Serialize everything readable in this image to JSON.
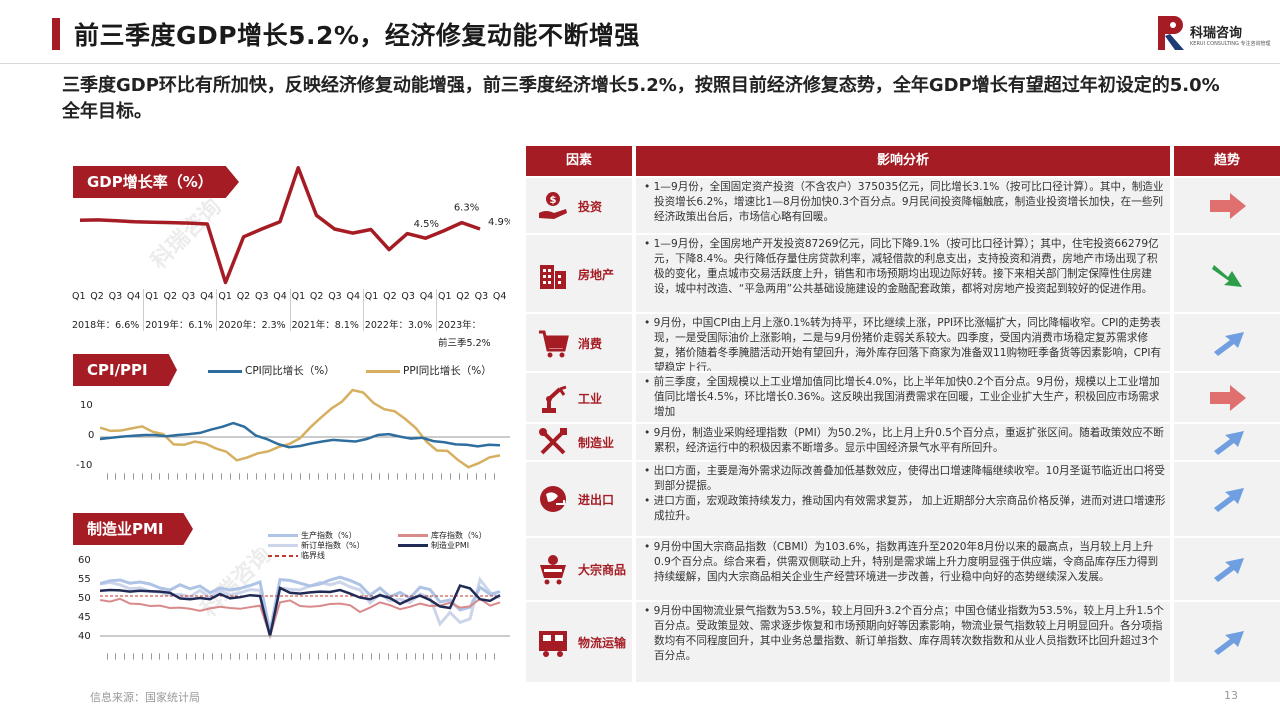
{
  "title": "前三季度GDP增长5.2%，经济修复动能不断增强",
  "logo": {
    "cn": "科瑞咨询",
    "en": "KERUI CONSULTING  专注咨询管理"
  },
  "subtitle": "三季度GDP环比有所加快，反映经济修复动能增强，前三季度经济增长5.2%，按照目前经济修复态势，全年GDP增长有望超过年初设定的5.0%全年目标。",
  "watermark": "科瑞咨询",
  "gdp_section": {
    "label": "GDP增长率（%）",
    "annotations": [
      "6.3%",
      "4.5%",
      "4.9%"
    ],
    "quarters": [
      "Q1",
      "Q2",
      "Q3",
      "Q4",
      "Q1",
      "Q2",
      "Q3",
      "Q4",
      "Q1",
      "Q2",
      "Q3",
      "Q4",
      "Q1",
      "Q2",
      "Q3",
      "Q4",
      "Q1",
      "Q2",
      "Q3",
      "Q4",
      "Q1",
      "Q2",
      "Q3",
      "Q4"
    ],
    "years": [
      "2018年：6.6%",
      "2019年：6.1%",
      "2020年：2.3%",
      "2021年：8.1%",
      "2022年：3.0%",
      "2023年："
    ],
    "year_last_line2": "前三季5.2%"
  },
  "cpi_section": {
    "label": "CPI/PPI",
    "legend": [
      "CPI同比增长（%）",
      "PPI同比增长（%）"
    ],
    "yticks": [
      "10",
      "0",
      "-10"
    ],
    "colors": {
      "cpi": "#2e6e9e",
      "ppi": "#d6b060"
    }
  },
  "pmi_section": {
    "label": "制造业PMI",
    "legend": [
      "生产指数（%）",
      "新订单指数（%）",
      "临界线",
      "库存指数（%）",
      "制造业PMI"
    ],
    "yticks": [
      "60",
      "55",
      "50",
      "45",
      "40"
    ],
    "colors": {
      "production": "#aec3e6",
      "orders": "#cdd5ea",
      "threshold": "#c0392b",
      "inventory": "#d98a8a",
      "pmi": "#1f2a55"
    }
  },
  "table": {
    "headers": [
      "因素",
      "影响分析",
      "趋势"
    ],
    "rows": [
      {
        "name": "投资",
        "icon": "investment-icon",
        "trend": "right",
        "lines": [
          "1—9月份，全国固定资产投资（不含农户）375035亿元，同比增长3.1%（按可比口径计算）。其中，制造业投资增长6.2%，增速比1—8月份加快0.3个百分点。9月民间投资降幅触底，制造业投资增长加快，在一些列经济政策出台后，市场信心略有回暖。"
        ]
      },
      {
        "name": "房地产",
        "icon": "building-icon",
        "trend": "down",
        "lines": [
          "1—9月份，全国房地产开发投资87269亿元，同比下降9.1%（按可比口径计算）；其中，住宅投资66279亿元，下降8.4%。央行降低存量住房贷款利率，减轻借款的利息支出，支持投资和消费，房地产市场出现了积极的变化，重点城市交易活跃度上升，销售和市场预期均出现边际好转。接下来相关部门制定保障性住房建设，城中村改造、“平急两用”公共基础设施建设的金融配套政策，都将对房地产投资起到较好的促进作用。"
        ]
      },
      {
        "name": "消费",
        "icon": "cart-icon",
        "trend": "up",
        "lines": [
          "9月份，中国CPI由上月上涨0.1%转为持平，环比继续上涨，PPI环比涨幅扩大，同比降幅收窄。CPI的走势表现，一是受国际油价上涨影响，二是与9月份猪价走弱关系较大。四季度，受国内消费市场稳定复苏需求修复，猪价随着冬季腌腊活动开始有望回升，海外库存回落下商家为准备双11购物旺季备货等因素影响，CPI有望稳定上行。"
        ]
      },
      {
        "name": "工业",
        "icon": "robot-arm-icon",
        "trend": "right",
        "lines": [
          "前三季度，全国规模以上工业增加值同比增长4.0%，比上半年加快0.2个百分点。9月份，规模以上工业增加值同比增长4.5%，环比增长0.36%。这反映出我国消费需求在回暖，工业企业扩大生产，积极回应市场需求增加"
        ]
      },
      {
        "name": "制造业",
        "icon": "tools-icon",
        "trend": "up",
        "lines": [
          "9月份，制造业采购经理指数（PMI）为50.2%，比上月上升0.5个百分点，重返扩张区间。随着政策效应不断累积，经济运行中的积极因素不断增多。显示中国经济景气水平有所回升。"
        ]
      },
      {
        "name": "进出口",
        "icon": "trade-icon",
        "trend": "up",
        "lines": [
          "出口方面，主要是海外需求边际改善叠加低基数效应，使得出口增速降幅继续收窄。10月圣诞节临近出口将受到部分提振。",
          "进口方面，宏观政策持续发力，推动国内有效需求复苏， 加上近期部分大宗商品价格反弹，进而对进口增速形成拉升。"
        ]
      },
      {
        "name": "大宗商品",
        "icon": "mining-cart-icon",
        "trend": "up",
        "lines": [
          "9月份中国大宗商品指数（CBMI）为103.6%，指数再连升至2020年8月份以来的最高点，当月较上月上升0.9个百分点。综合来看，供需双侧联动上升，特别是需求端上升力度明显强于供应端，令商品库存压力得到持续缓解，国内大宗商品相关企业生产经营环境进一步改善，行业稳中向好的态势继续深入发展。"
        ]
      },
      {
        "name": "物流运输",
        "icon": "truck-icon",
        "trend": "up",
        "lines": [
          "9月份中国物流业景气指数为53.5%，较上月回升3.2个百分点；中国仓储业指数为53.5%，较上月上升1.5个百分点。受政策显效、需求逐步恢复和市场预期向好等因素影响，物流业景气指数较上月明显回升。各分项指数均有不同程度回升，其中业务总量指数、新订单指数、库存周转次数指数和从业人员指数环比回升超过3个百分点。"
        ]
      }
    ]
  },
  "source": "信息来源：国家统计局",
  "page_number": "13",
  "chart_data": [
    {
      "type": "line",
      "title": "GDP增长率（%）",
      "ylim": [
        -8,
        20
      ],
      "series": [
        {
          "name": "GDP",
          "values": [
            6.8,
            6.9,
            6.7,
            6.5,
            6.4,
            6.3,
            6.2,
            6.0,
            -6.8,
            3.2,
            4.9,
            6.5,
            18.3,
            7.9,
            4.9,
            4.0,
            4.8,
            0.4,
            3.9,
            2.9,
            4.5,
            6.3,
            4.9
          ]
        }
      ]
    },
    {
      "type": "line",
      "title": "CPI/PPI",
      "ylim": [
        -10,
        14
      ],
      "series": [
        {
          "name": "CPI同比增长（%）",
          "values": [
            1.5,
            1.8,
            2.1,
            2.3,
            2.5,
            2.5,
            2.2,
            2.5,
            2.7,
            3.0,
            3.8,
            4.5,
            5.4,
            4.5,
            2.4,
            1.5,
            0.3,
            -0.5,
            -0.2,
            0.4,
            0.9,
            1.3,
            1.1,
            0.9,
            1.5,
            2.5,
            2.7,
            2.1,
            1.6,
            1.8,
            1.0,
            0.7,
            0.2,
            0.1,
            -0.3,
            0.1,
            0.0
          ]
        },
        {
          "name": "PPI同比增长（%）",
          "values": [
            4.3,
            3.5,
            3.6,
            4.1,
            4.6,
            3.3,
            2.7,
            0.2,
            0.1,
            0.9,
            0.4,
            -0.8,
            -1.6,
            -3.7,
            -3.0,
            -2.0,
            -1.5,
            -0.4,
            0.3,
            1.7,
            4.4,
            6.8,
            9.0,
            10.7,
            13.5,
            12.9,
            10.3,
            8.8,
            8.3,
            6.4,
            4.2,
            0.9,
            -1.3,
            -1.4,
            -3.6,
            -5.4,
            -4.4,
            -3.0,
            -2.5
          ]
        }
      ]
    },
    {
      "type": "line",
      "title": "制造业PMI",
      "ylim": [
        35,
        60
      ],
      "series": [
        {
          "name": "生产指数（%）",
          "values": [
            53.1,
            53.8,
            54.0,
            53.2,
            53.5,
            53.0,
            52.0,
            51.5,
            52.8,
            51.8,
            52.5,
            50.8,
            52.0,
            51.5,
            51.9,
            52.6,
            53.5,
            41.0,
            54.1,
            53.9,
            53.2,
            52.5,
            53.0,
            54.0,
            54.7,
            53.9,
            52.8,
            50.2,
            52.0,
            49.8,
            50.9,
            49.5,
            52.2,
            51.6,
            48.5,
            49.0,
            46.5,
            47.2,
            52.2,
            50.4,
            51.1
          ]
        },
        {
          "name": "新订单指数（%）",
          "values": [
            53.0,
            53.4,
            52.8,
            51.8,
            52.0,
            51.2,
            50.9,
            50.2,
            50.4,
            49.8,
            51.4,
            49.6,
            51.4,
            50.2,
            50.8,
            51.6,
            51.4,
            29.3,
            52.0,
            51.7,
            51.5,
            52.5,
            53.4,
            52.8,
            53.5,
            52.3,
            51.5,
            48.3,
            50.5,
            48.8,
            49.2,
            48.4,
            50.5,
            49.6,
            43.0,
            45.9,
            43.4,
            44.3,
            54.1,
            50.9,
            49.5
          ]
        },
        {
          "name": "临界线",
          "values": [
            50,
            50,
            50,
            50,
            50,
            50,
            50,
            50,
            50,
            50,
            50,
            50,
            50,
            50,
            50,
            50,
            50,
            50,
            50,
            50,
            50,
            50,
            50,
            50,
            50,
            50,
            50,
            50,
            50,
            50,
            50,
            50,
            50,
            50,
            50,
            50,
            50,
            50,
            50,
            50,
            50
          ]
        },
        {
          "name": "库存指数（%）",
          "values": [
            49.0,
            48.6,
            49.3,
            48.1,
            48.0,
            47.5,
            47.6,
            47.0,
            47.1,
            46.8,
            46.3,
            46.9,
            47.3,
            47.0,
            46.8,
            47.2,
            47.6,
            40.0,
            48.4,
            48.9,
            47.5,
            47.3,
            47.5,
            48.0,
            48.1,
            47.7,
            46.0,
            47.1,
            48.4,
            47.7,
            46.7,
            47.3,
            48.1,
            47.5,
            47.6,
            48.3,
            47.1,
            47.4,
            49.3,
            47.6,
            48.4
          ]
        },
        {
          "name": "制造业PMI",
          "values": [
            51.3,
            51.5,
            51.4,
            51.1,
            51.3,
            51.2,
            51.1,
            50.8,
            49.4,
            49.2,
            49.5,
            49.2,
            50.5,
            49.4,
            49.7,
            50.2,
            50.0,
            35.7,
            52.0,
            50.8,
            50.6,
            50.9,
            51.1,
            51.0,
            51.5,
            50.6,
            49.6,
            49.2,
            50.2,
            49.5,
            48.0,
            49.2,
            50.1,
            49.0,
            47.4,
            47.0,
            52.6,
            51.9,
            49.2,
            48.8,
            50.2
          ]
        }
      ]
    }
  ]
}
